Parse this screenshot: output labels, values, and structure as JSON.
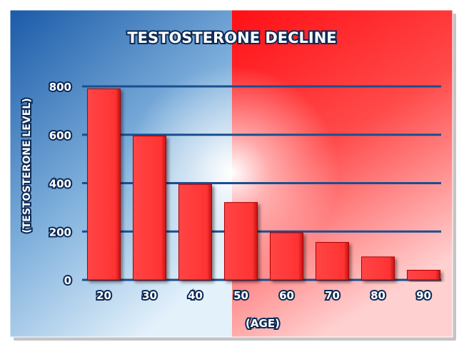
{
  "chart_data": {
    "type": "bar",
    "title": "TESTOSTERONE DECLINE",
    "xlabel": "(AGE)",
    "ylabel": "(TESTOSTERONE LEVEL)",
    "categories": [
      "20",
      "30",
      "40",
      "50",
      "60",
      "70",
      "80",
      "90"
    ],
    "values": [
      790,
      595,
      395,
      320,
      195,
      155,
      95,
      40
    ],
    "ylim": [
      0,
      800
    ],
    "yticks": [
      "0",
      "200",
      "400",
      "600",
      "800"
    ],
    "grid": true,
    "legend": "none",
    "colors": {
      "bar": "#ff3b3b",
      "bar_edge": "#b00000",
      "gridline": "#1a4f8f",
      "text_fill": "#ffffff",
      "text_outline": "#0b2a55",
      "bg_blue": "#1e63b0",
      "bg_red": "#ff1a1a"
    }
  }
}
